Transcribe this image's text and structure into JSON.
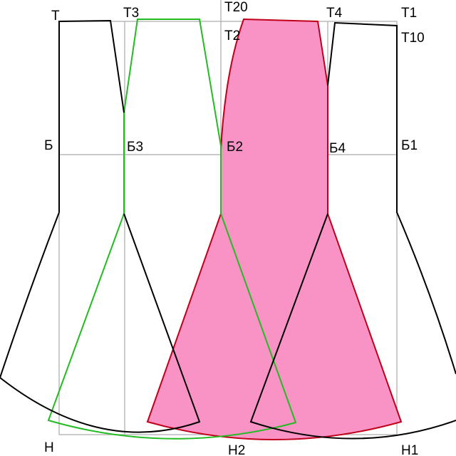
{
  "labels": {
    "t": "Т",
    "t3": "Т3",
    "t20": "Т20",
    "t2": "Т2",
    "t4": "Т4",
    "t1": "Т1",
    "t10": "Т10",
    "b": "Б",
    "b3": "Б3",
    "b2": "Б2",
    "b4": "Б4",
    "b1": "Б1",
    "n": "Н",
    "n2": "Н2",
    "n1": "Н1"
  }
}
